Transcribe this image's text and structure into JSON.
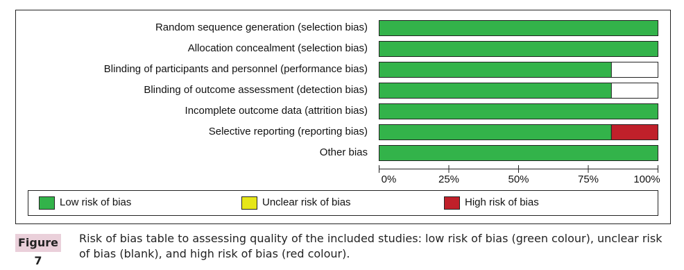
{
  "chart_data": {
    "type": "stacked-barh",
    "categories": [
      "Random sequence generation (selection bias)",
      "Allocation concealment (selection bias)",
      "Blinding of participants and personnel (performance bias)",
      "Blinding of outcome assessment (detection bias)",
      "Incomplete outcome data (attrition bias)",
      "Selective reporting (reporting bias)",
      "Other bias"
    ],
    "series": [
      {
        "name": "Low risk of bias",
        "color": "#33b34a",
        "values": [
          100,
          100,
          83.3,
          83.3,
          100,
          83.3,
          100
        ]
      },
      {
        "name": "Unclear risk of bias",
        "color": "#e6e619",
        "values": [
          0,
          0,
          0,
          0,
          0,
          0,
          0
        ]
      },
      {
        "name": "High risk of bias",
        "color": "#c0202a",
        "values": [
          0,
          0,
          0,
          0,
          0,
          16.7,
          0
        ]
      }
    ],
    "xlim": [
      0,
      100
    ],
    "xticks": [
      {
        "value": 0,
        "label": "0%"
      },
      {
        "value": 25,
        "label": "25%"
      },
      {
        "value": 50,
        "label": "50%"
      },
      {
        "value": 75,
        "label": "75%"
      },
      {
        "value": 100,
        "label": "100%"
      }
    ]
  },
  "figure": {
    "label": "Figure 7",
    "caption": "Risk of bias table to assessing quality of the included studies: low risk of bias (green colour), unclear risk of bias (blank), and high risk of bias (red colour)."
  }
}
